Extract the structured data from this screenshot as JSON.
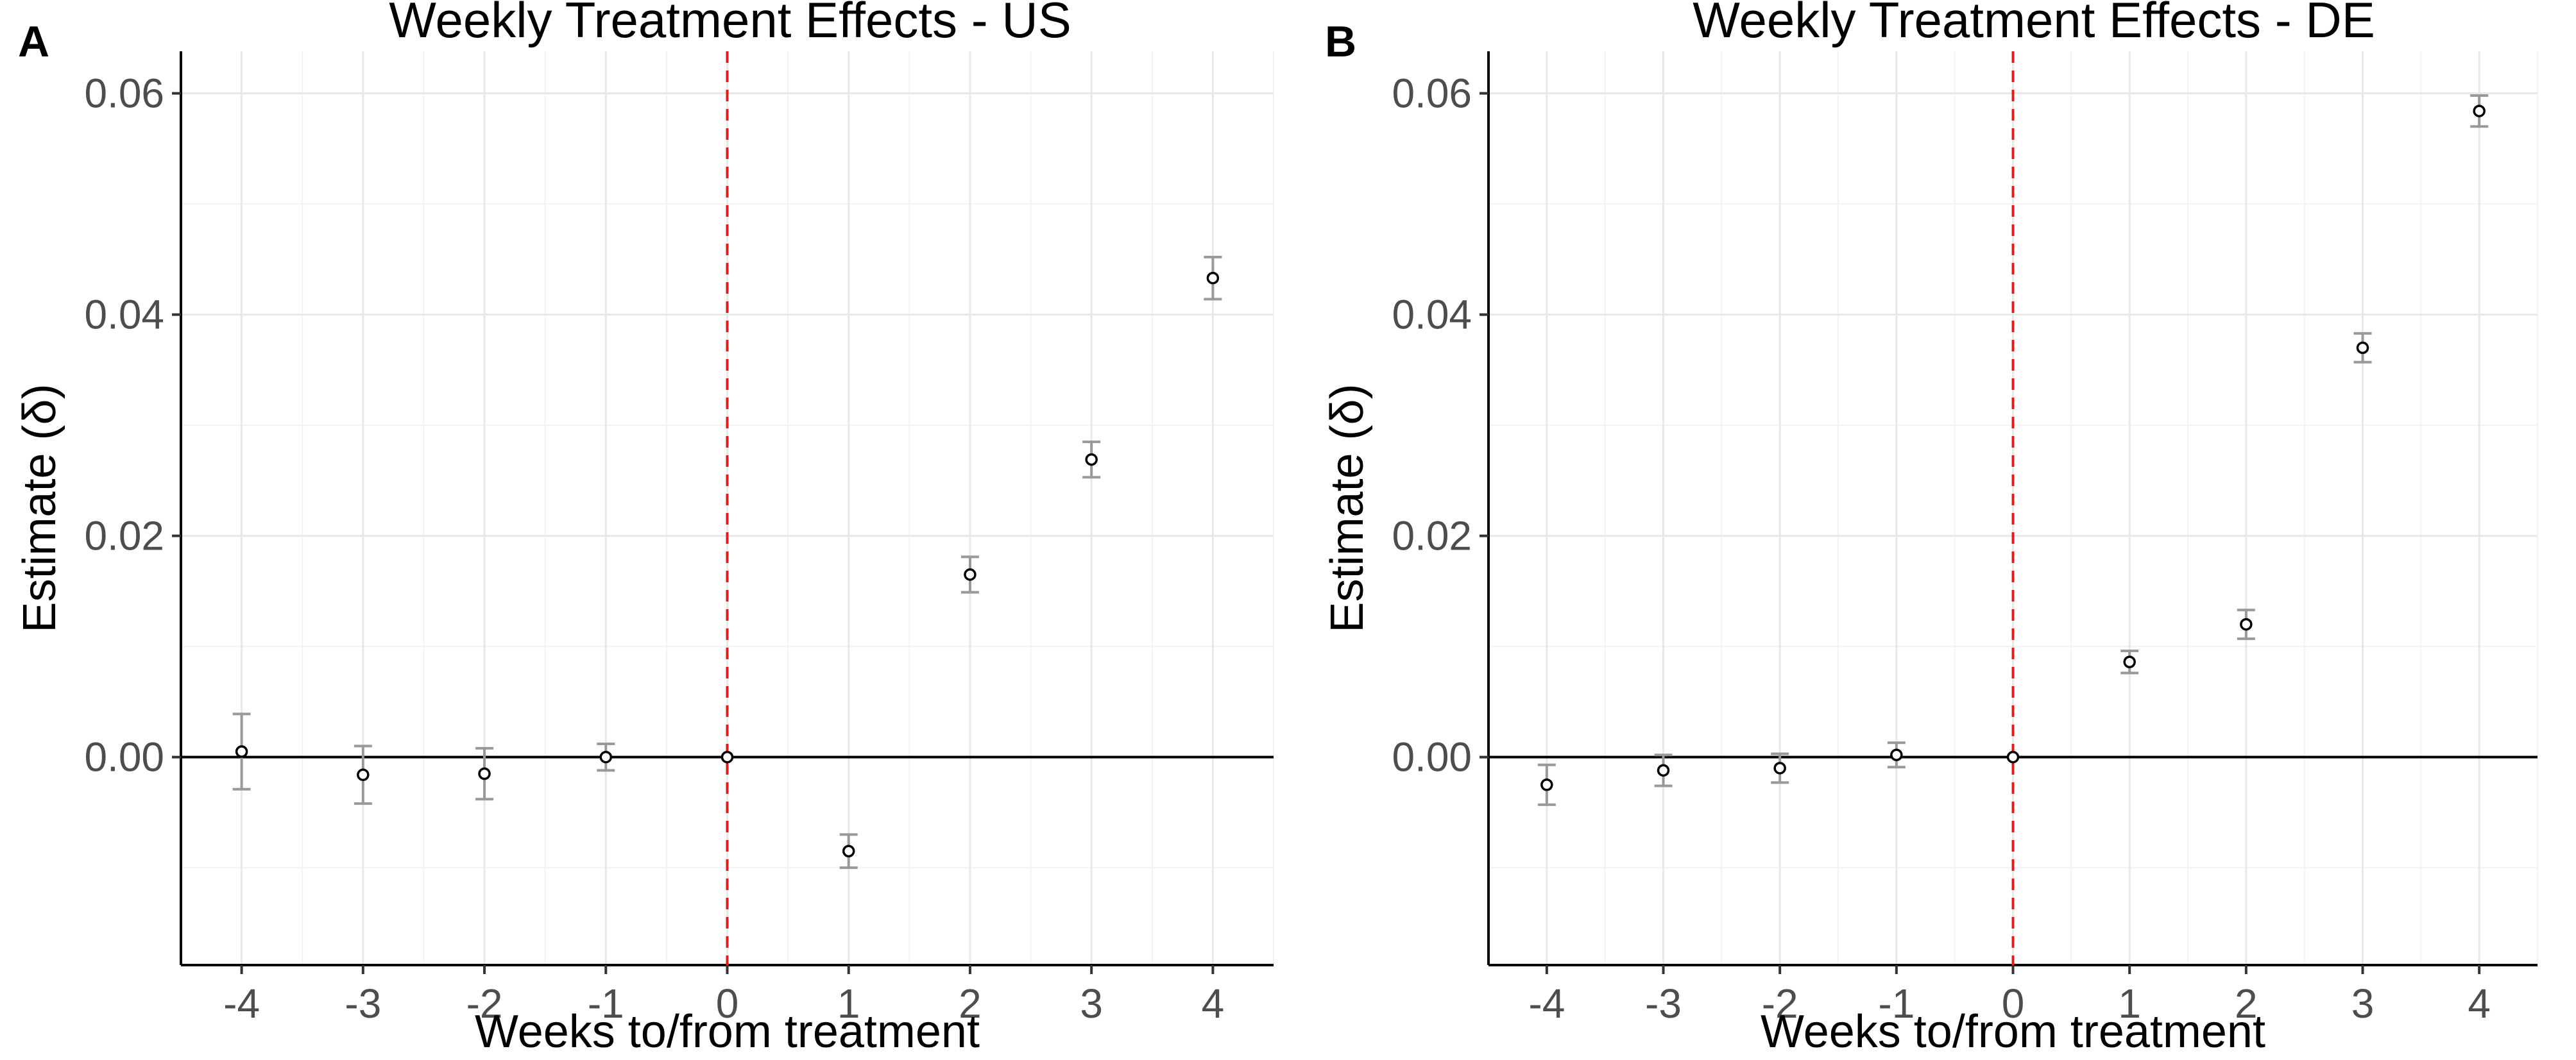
{
  "chart_data": [
    {
      "type": "scatter",
      "panel_tag": "A",
      "title": "Weekly Treatment Effects - US",
      "xlabel": "Weeks to/from treatment",
      "ylabel": "Estimate (δ)",
      "xlim": [
        -4.5,
        4.5
      ],
      "ylim": [
        -0.0188,
        0.0638
      ],
      "x": [
        -4,
        -3,
        -2,
        -1,
        0,
        1,
        2,
        3,
        4
      ],
      "y": [
        0.0005,
        -0.0016,
        -0.0015,
        0.0,
        0.0,
        -0.0085,
        0.0165,
        0.0269,
        0.0433
      ],
      "ci_low": [
        -0.0029,
        -0.0042,
        -0.0038,
        -0.0012,
        0.0,
        -0.01,
        0.0149,
        0.0253,
        0.0414
      ],
      "ci_high": [
        0.0039,
        0.001,
        0.0008,
        0.0012,
        0.0,
        -0.007,
        0.0181,
        0.0285,
        0.0452
      ],
      "xticks": [
        "-4",
        "-3",
        "-2",
        "-1",
        "0",
        "1",
        "2",
        "3",
        "4"
      ],
      "yticks": [
        "0.00",
        "0.02",
        "0.04",
        "0.06"
      ],
      "reference_line_x": 0,
      "reference_line_y": 0,
      "colors": {
        "reference_x": "#e41a1c",
        "ci": "#999999",
        "point": "#000000"
      }
    },
    {
      "type": "scatter",
      "panel_tag": "B",
      "title": "Weekly Treatment Effects - DE",
      "xlabel": "Weeks to/from treatment",
      "ylabel": "Estimate (δ)",
      "xlim": [
        -4.5,
        4.5
      ],
      "ylim": [
        -0.0188,
        0.0638
      ],
      "x": [
        -4,
        -3,
        -2,
        -1,
        0,
        1,
        2,
        3,
        4
      ],
      "y": [
        -0.0025,
        -0.0012,
        -0.001,
        0.0002,
        0.0,
        0.0086,
        0.012,
        0.037,
        0.0584
      ],
      "ci_low": [
        -0.0043,
        -0.0026,
        -0.0023,
        -0.0009,
        0.0,
        0.0076,
        0.0107,
        0.0357,
        0.057
      ],
      "ci_high": [
        -0.0007,
        0.0002,
        0.0003,
        0.0013,
        0.0,
        0.0096,
        0.0133,
        0.0383,
        0.0598
      ],
      "xticks": [
        "-4",
        "-3",
        "-2",
        "-1",
        "0",
        "1",
        "2",
        "3",
        "4"
      ],
      "yticks": [
        "0.00",
        "0.02",
        "0.04",
        "0.06"
      ],
      "reference_line_x": 0,
      "reference_line_y": 0,
      "colors": {
        "reference_x": "#e41a1c",
        "ci": "#999999",
        "point": "#000000"
      }
    }
  ]
}
